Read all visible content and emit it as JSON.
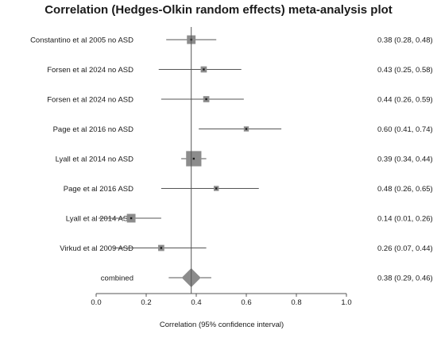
{
  "chart_data": {
    "type": "forest",
    "title": "Correlation (Hedges-Olkin random effects) meta-analysis plot",
    "xlabel": "Correlation (95% confidence interval)",
    "xlim": [
      0.0,
      1.0
    ],
    "xticks": [
      "0.0",
      "0.2",
      "0.4",
      "0.6",
      "0.8",
      "1.0"
    ],
    "reference_line": 0.38,
    "studies": [
      {
        "label": "Constantino et al 2005 no ASD",
        "estimate": 0.38,
        "lower": 0.28,
        "upper": 0.48,
        "weight": 1.7,
        "ci_text": "0.38 (0.28, 0.48)"
      },
      {
        "label": "Forsen et al 2024 no ASD",
        "estimate": 0.43,
        "lower": 0.25,
        "upper": 0.58,
        "weight": 1.2,
        "ci_text": "0.43 (0.25, 0.58)"
      },
      {
        "label": "Forsen et al 2024 no ASD",
        "estimate": 0.44,
        "lower": 0.26,
        "upper": 0.59,
        "weight": 1.2,
        "ci_text": "0.44 (0.26, 0.59)"
      },
      {
        "label": "Page et al 2016 no ASD",
        "estimate": 0.6,
        "lower": 0.41,
        "upper": 0.74,
        "weight": 1.0,
        "ci_text": "0.60 (0.41, 0.74)"
      },
      {
        "label": "Lyall et al 2014 no ASD",
        "estimate": 0.39,
        "lower": 0.34,
        "upper": 0.44,
        "weight": 3.0,
        "ci_text": "0.39 (0.34, 0.44)"
      },
      {
        "label": "Page et al 2016 ASD",
        "estimate": 0.48,
        "lower": 0.26,
        "upper": 0.65,
        "weight": 1.0,
        "ci_text": "0.48 (0.26, 0.65)"
      },
      {
        "label": "Lyall et al 2014 ASD",
        "estimate": 0.14,
        "lower": 0.01,
        "upper": 0.26,
        "weight": 1.7,
        "ci_text": "0.14 (0.01, 0.26)"
      },
      {
        "label": "Virkud et al 2009 ASD",
        "estimate": 0.26,
        "lower": 0.07,
        "upper": 0.44,
        "weight": 1.2,
        "ci_text": "0.26 (0.07, 0.44)"
      }
    ],
    "combined": {
      "label": "combined",
      "estimate": 0.38,
      "lower": 0.29,
      "upper": 0.46,
      "ci_text": "0.38 (0.29, 0.46)"
    },
    "colors": {
      "marker": "#8c8c8c",
      "point": "#1a1a1a",
      "line": "#555555",
      "text": "#1a1a1a"
    }
  }
}
